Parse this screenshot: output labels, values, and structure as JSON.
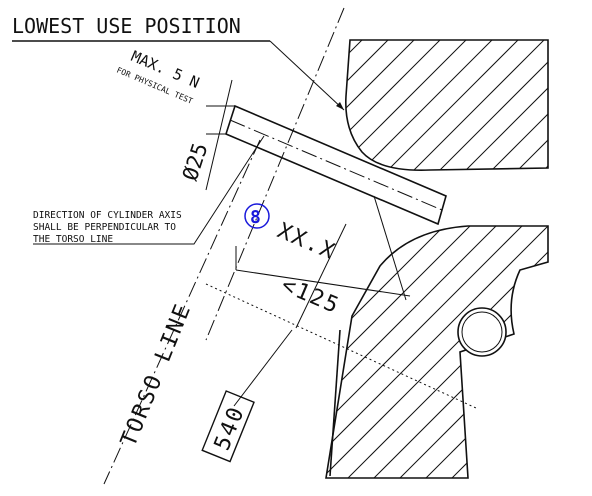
{
  "title": "LOWEST USE POSITION",
  "force_label": "MAX. 5 N",
  "force_note": "FOR PHYSICAL TEST",
  "diameter": "Ø25",
  "axis_note": [
    "DIRECTION OF CYLINDER AXIS",
    "SHALL BE PERPENDICULAR TO",
    "THE TORSO LINE"
  ],
  "badge": "8",
  "badge_color": "#1a1adb",
  "placeholder_value": "XX.X",
  "distance": "<125",
  "torso_label": "TORSO LINE",
  "box_value": "540"
}
